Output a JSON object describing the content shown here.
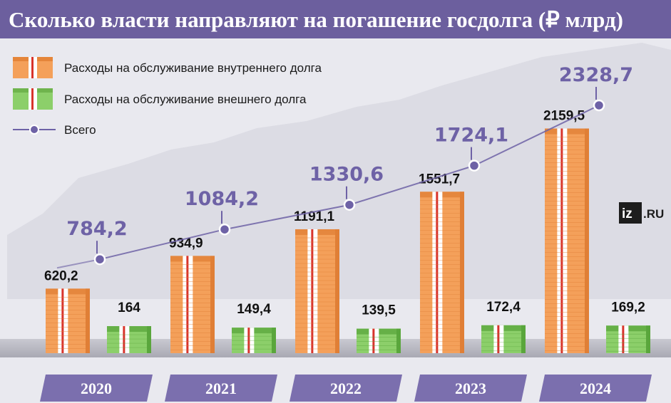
{
  "title": "Сколько власти направляют на погашение госдолга (₽ млрд)",
  "logo": {
    "mark": "iz",
    "domain": ".RU"
  },
  "colors": {
    "title_bar": "#6c5f9e",
    "domestic": "#f4a05a",
    "domestic_side": "#e07f36",
    "external": "#8ccf6a",
    "external_side": "#5aa63c",
    "total_line": "#6e62a6",
    "year_box": "#7b6fae"
  },
  "chart_data": {
    "type": "bar",
    "title": "Сколько власти направляют на погашение госдолга (₽ млрд)",
    "xlabel": "",
    "ylabel": "",
    "categories": [
      "2020",
      "2021",
      "2022",
      "2023",
      "2024"
    ],
    "category_labels": [
      "2020",
      "2021",
      "2022",
      "2023",
      "2024"
    ],
    "ylim": [
      0,
      2500
    ],
    "legend_position": "top-left",
    "series": [
      {
        "name": "Расходы на обслуживание внутреннего долга",
        "values": [
          620.2,
          934.9,
          1191.1,
          1551.7,
          2159.5
        ],
        "labels": [
          "620,2",
          "934,9",
          "1191,1",
          "1551,7",
          "2159,5"
        ]
      },
      {
        "name": "Расходы на обслуживание внешнего долга",
        "values": [
          164,
          149.4,
          139.5,
          172.4,
          169.2
        ],
        "labels": [
          "164",
          "149,4",
          "139,5",
          "172,4",
          "169,2"
        ]
      },
      {
        "name": "Всего",
        "values": [
          784.2,
          1084.2,
          1330.6,
          1724.1,
          2328.7
        ],
        "labels": [
          "784,2",
          "1084,2",
          "1330,6",
          "1724,1",
          "2328,7"
        ]
      }
    ]
  }
}
